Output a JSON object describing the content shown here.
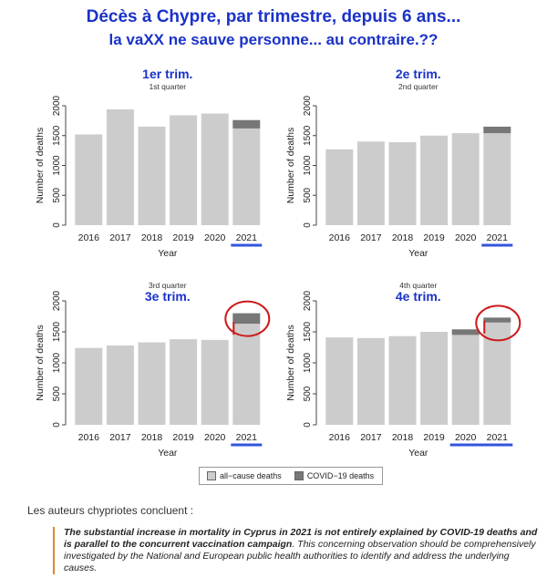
{
  "header": {
    "title": "Décès à Chypre, par trimestre, depuis 6 ans...",
    "subtitle": "la vaXX ne sauve personne... au contraire.??"
  },
  "colors": {
    "all_cause": "#cccccc",
    "covid": "#777777",
    "title_blue": "#1a32c8",
    "underline_blue": "#3355dd",
    "circle_red": "#cc1a1a"
  },
  "chart_data": [
    {
      "type": "bar",
      "stacked": true,
      "fr_label": "1er trim.",
      "title": "1st quarter",
      "categories": [
        "2016",
        "2017",
        "2018",
        "2019",
        "2020",
        "2021"
      ],
      "series": [
        {
          "name": "all−cause deaths",
          "values": [
            1520,
            1940,
            1650,
            1840,
            1870,
            1620
          ]
        },
        {
          "name": "COVID−19 deaths",
          "values": [
            0,
            0,
            0,
            0,
            0,
            140
          ]
        }
      ],
      "xlabel": "Year",
      "ylabel": "Number of deaths",
      "ylim": [
        0,
        2000
      ],
      "yticks": [
        0,
        500,
        1000,
        1500,
        2000
      ],
      "underline": "2021"
    },
    {
      "type": "bar",
      "stacked": true,
      "fr_label": "2e trim.",
      "title": "2nd quarter",
      "categories": [
        "2016",
        "2017",
        "2018",
        "2019",
        "2020",
        "2021"
      ],
      "series": [
        {
          "name": "all−cause deaths",
          "values": [
            1270,
            1400,
            1390,
            1500,
            1540,
            1540
          ]
        },
        {
          "name": "COVID−19 deaths",
          "values": [
            0,
            0,
            0,
            0,
            0,
            110
          ]
        }
      ],
      "xlabel": "Year",
      "ylabel": "Number of deaths",
      "ylim": [
        0,
        2000
      ],
      "yticks": [
        0,
        500,
        1000,
        1500,
        2000
      ],
      "underline": "2021"
    },
    {
      "type": "bar",
      "stacked": true,
      "fr_label": "3e trim.",
      "title": "3rd quarter",
      "categories": [
        "2016",
        "2017",
        "2018",
        "2019",
        "2020",
        "2021"
      ],
      "series": [
        {
          "name": "all−cause deaths",
          "values": [
            1240,
            1280,
            1330,
            1380,
            1370,
            1630
          ]
        },
        {
          "name": "COVID−19 deaths",
          "values": [
            0,
            0,
            0,
            0,
            0,
            170
          ]
        }
      ],
      "xlabel": "Year",
      "ylabel": "Number of deaths",
      "ylim": [
        0,
        2000
      ],
      "yticks": [
        0,
        500,
        1000,
        1500,
        2000
      ],
      "underline": "2021",
      "circle": "2021"
    },
    {
      "type": "bar",
      "stacked": true,
      "fr_label": "4e trim.",
      "title": "4th quarter",
      "categories": [
        "2016",
        "2017",
        "2018",
        "2019",
        "2020",
        "2021"
      ],
      "series": [
        {
          "name": "all−cause deaths",
          "values": [
            1410,
            1400,
            1430,
            1500,
            1450,
            1650
          ]
        },
        {
          "name": "COVID−19 deaths",
          "values": [
            0,
            0,
            0,
            0,
            90,
            80
          ]
        }
      ],
      "xlabel": "Year",
      "ylabel": "Number of deaths",
      "ylim": [
        0,
        2000
      ],
      "yticks": [
        0,
        500,
        1000,
        1500,
        2000
      ],
      "underline": "2020-2021",
      "circle": "2021"
    }
  ],
  "legend": {
    "all_cause": "all−cause deaths",
    "covid": "COVID−19 deaths"
  },
  "footer": {
    "conclude": "Les auteurs chypriotes concluent :",
    "quote_bold": "The substantial increase in mortality in Cyprus in 2021 is not entirely explained by COVID-19 deaths and is parallel to the concurrent vaccination campaign",
    "quote_rest": ". This concerning observation should be comprehensively investigated by the National and European public health authorities to identify and address the underlying causes."
  }
}
